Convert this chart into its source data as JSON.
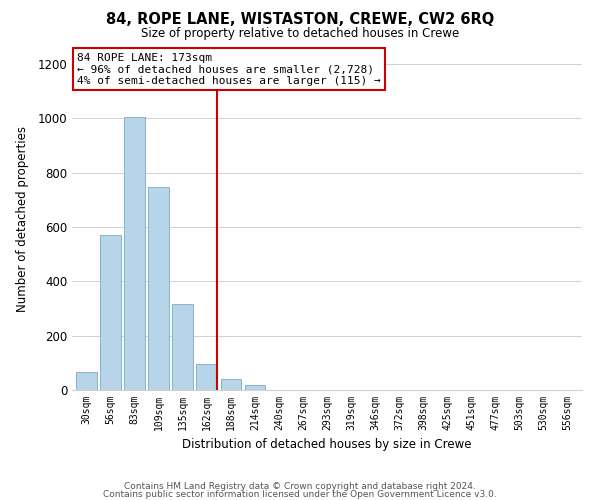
{
  "title": "84, ROPE LANE, WISTASTON, CREWE, CW2 6RQ",
  "subtitle": "Size of property relative to detached houses in Crewe",
  "xlabel": "Distribution of detached houses by size in Crewe",
  "ylabel": "Number of detached properties",
  "bar_labels": [
    "30sqm",
    "56sqm",
    "83sqm",
    "109sqm",
    "135sqm",
    "162sqm",
    "188sqm",
    "214sqm",
    "240sqm",
    "267sqm",
    "293sqm",
    "319sqm",
    "346sqm",
    "372sqm",
    "398sqm",
    "425sqm",
    "451sqm",
    "477sqm",
    "503sqm",
    "530sqm",
    "556sqm"
  ],
  "bar_values": [
    65,
    570,
    1005,
    745,
    315,
    95,
    42,
    18,
    0,
    0,
    0,
    0,
    0,
    0,
    0,
    0,
    0,
    0,
    0,
    0,
    0
  ],
  "bar_color": "#b8d4e8",
  "bar_edge_color": "#7aaac8",
  "vline_color": "#cc0000",
  "annotation_title": "84 ROPE LANE: 173sqm",
  "annotation_line1": "← 96% of detached houses are smaller (2,728)",
  "annotation_line2": "4% of semi-detached houses are larger (115) →",
  "annotation_box_color": "#ffffff",
  "annotation_box_edge": "#cc0000",
  "ylim": [
    0,
    1260
  ],
  "yticks": [
    0,
    200,
    400,
    600,
    800,
    1000,
    1200
  ],
  "bg_color": "#ffffff",
  "grid_color": "#d0d0d0",
  "footer1": "Contains HM Land Registry data © Crown copyright and database right 2024.",
  "footer2": "Contains public sector information licensed under the Open Government Licence v3.0."
}
